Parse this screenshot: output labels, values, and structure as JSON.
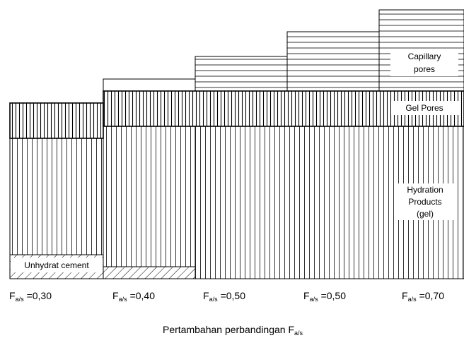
{
  "labels": {
    "capillary_line1": "Capillary",
    "capillary_line2": "pores",
    "gel_pores": "Gel Pores",
    "hydration_line1": "Hydration",
    "hydration_line2": "Products",
    "hydration_line3": "(gel)",
    "unhydrat": "Unhydrat cement"
  },
  "columns": [
    {
      "f_symbol": "F",
      "f_sub": "a/s",
      "f_value": "=0,30"
    },
    {
      "f_symbol": "F",
      "f_sub": "a/s",
      "f_value": "=0,40"
    },
    {
      "f_symbol": "F",
      "f_sub": "a/s",
      "f_value": "=0,50"
    },
    {
      "f_symbol": "F",
      "f_sub": "a/s",
      "f_value": "=0,50"
    },
    {
      "f_symbol": "F",
      "f_sub": "a/s",
      "f_value": "=0,70"
    }
  ],
  "caption": {
    "text": "Pertambahan perbandingan F",
    "sub": "a/s"
  }
}
